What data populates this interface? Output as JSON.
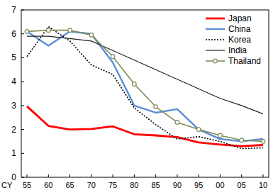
{
  "chart_data": {
    "type": "line",
    "x_label": "CY",
    "categories": [
      "55",
      "60",
      "65",
      "70",
      "75",
      "80",
      "85",
      "90",
      "95",
      "00",
      "05",
      "10"
    ],
    "series": [
      {
        "name": "Japan",
        "color": "#ff0000",
        "line_style": "solid",
        "values": [
          2.97,
          2.15,
          2.0,
          2.02,
          2.13,
          1.8,
          1.75,
          1.68,
          1.46,
          1.37,
          1.3,
          1.35
        ]
      },
      {
        "name": "China",
        "color": "#5b8ed8",
        "line_style": "solid",
        "values": [
          6.1,
          5.5,
          6.1,
          6.0,
          4.8,
          3.0,
          2.7,
          2.85,
          2.0,
          1.6,
          1.5,
          1.6
        ]
      },
      {
        "name": "Korea",
        "color": "#000000",
        "line_style": "dotted",
        "values": [
          5.05,
          6.3,
          5.7,
          4.7,
          4.3,
          2.9,
          2.2,
          1.6,
          1.7,
          1.5,
          1.2,
          1.23
        ]
      },
      {
        "name": "India",
        "color": "#222222",
        "line_style": "solid",
        "values": [
          5.9,
          5.9,
          5.8,
          5.7,
          5.3,
          4.9,
          4.5,
          4.1,
          3.7,
          3.3,
          3.0,
          2.65
        ]
      },
      {
        "name": "Thailand",
        "color": "#7d8c55",
        "line_style": "solid",
        "marker": "circle",
        "values": [
          6.1,
          6.15,
          6.15,
          5.95,
          5.05,
          3.9,
          2.95,
          2.3,
          2.0,
          1.75,
          1.55,
          1.5
        ]
      }
    ],
    "ylim": [
      0,
      7
    ],
    "yticks": [
      0,
      1,
      2,
      3,
      4,
      5,
      6,
      7
    ],
    "grid": false,
    "legend": "top-right"
  }
}
